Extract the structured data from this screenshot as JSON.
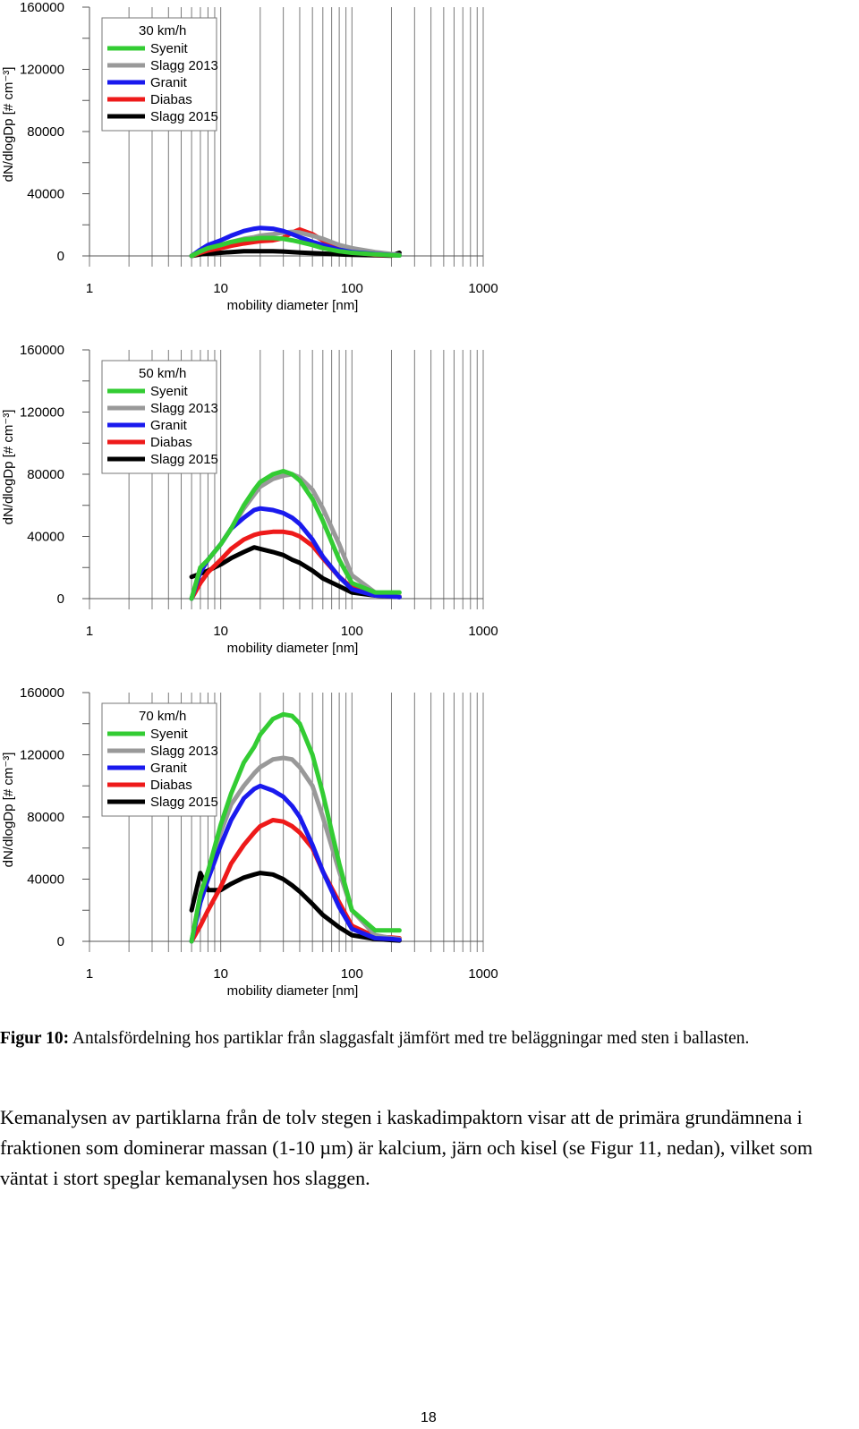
{
  "charts": [
    {
      "legend_title": "30 km/h",
      "ylabel": "dN/dlogDp [# cm⁻³]",
      "xlabel": "mobility diameter [nm]",
      "ytick_labels": [
        "0",
        "40000",
        "80000",
        "120000",
        "160000"
      ],
      "xtick_labels": [
        "1",
        "10",
        "100",
        "1000"
      ]
    },
    {
      "legend_title": "50 km/h",
      "ylabel": "dN/dlogDp [# cm⁻³]",
      "xlabel": "mobility diameter [nm]",
      "ytick_labels": [
        "0",
        "40000",
        "80000",
        "120000",
        "160000"
      ],
      "xtick_labels": [
        "1",
        "10",
        "100",
        "1000"
      ]
    },
    {
      "legend_title": "70 km/h",
      "ylabel": "dN/dlogDp [# cm⁻³]",
      "xlabel": "mobility diameter [nm]",
      "ytick_labels": [
        "0",
        "40000",
        "80000",
        "120000",
        "160000"
      ],
      "xtick_labels": [
        "1",
        "10",
        "100",
        "1000"
      ]
    }
  ],
  "chart_data": [
    {
      "type": "line",
      "title": "30 km/h",
      "xlabel": "mobility diameter [nm]",
      "ylabel": "dN/dlogDp [# cm⁻³]",
      "xscale": "log",
      "xlim": [
        1,
        1000
      ],
      "ylim": [
        0,
        160000
      ],
      "grid": true,
      "legend": "top-left",
      "x": [
        6,
        7,
        8,
        10,
        12,
        15,
        18,
        20,
        25,
        30,
        35,
        40,
        50,
        60,
        80,
        100,
        150,
        200,
        230
      ],
      "series": [
        {
          "name": "Syenit",
          "color": "#33cc33",
          "values": [
            0,
            3000,
            5000,
            7000,
            9000,
            10500,
            11000,
            11500,
            11500,
            11000,
            10000,
            9000,
            7000,
            5000,
            3000,
            2000,
            1000,
            500,
            300
          ]
        },
        {
          "name": "Slagg 2013",
          "color": "#999999",
          "values": [
            0,
            3000,
            5000,
            7000,
            9000,
            11000,
            12000,
            13000,
            14000,
            15000,
            15500,
            15000,
            13000,
            11000,
            7000,
            5000,
            2500,
            1200,
            600
          ]
        },
        {
          "name": "Granit",
          "color": "#1a1aee",
          "values": [
            0,
            4000,
            7000,
            10000,
            13000,
            16000,
            17500,
            18000,
            17500,
            16000,
            14000,
            12000,
            9000,
            7000,
            4000,
            2500,
            1200,
            600,
            300
          ]
        },
        {
          "name": "Diabas",
          "color": "#ee1a1a",
          "values": [
            0,
            2000,
            3500,
            5000,
            6500,
            8000,
            9000,
            9500,
            10000,
            11500,
            15000,
            17000,
            14000,
            10000,
            5000,
            2500,
            800,
            400,
            300
          ]
        },
        {
          "name": "Slagg 2015",
          "color": "#000000",
          "values": [
            0,
            1000,
            1500,
            2000,
            2500,
            3000,
            3000,
            3000,
            3000,
            2800,
            2500,
            2200,
            1800,
            1500,
            1000,
            700,
            400,
            200,
            2000
          ]
        }
      ]
    },
    {
      "type": "line",
      "title": "50 km/h",
      "xlabel": "mobility diameter [nm]",
      "ylabel": "dN/dlogDp [# cm⁻³]",
      "xscale": "log",
      "xlim": [
        1,
        1000
      ],
      "ylim": [
        0,
        160000
      ],
      "grid": true,
      "legend": "top-left",
      "x": [
        6,
        7,
        8,
        10,
        12,
        15,
        18,
        20,
        25,
        30,
        35,
        40,
        50,
        60,
        80,
        100,
        150,
        200,
        230
      ],
      "series": [
        {
          "name": "Syenit",
          "color": "#33cc33",
          "values": [
            0,
            20000,
            25000,
            35000,
            45000,
            60000,
            70000,
            75000,
            80000,
            82000,
            80000,
            76000,
            64000,
            50000,
            25000,
            10000,
            4000,
            4000,
            4000
          ]
        },
        {
          "name": "Slagg 2013",
          "color": "#999999",
          "values": [
            0,
            20000,
            25000,
            35000,
            45000,
            58000,
            67000,
            72000,
            77000,
            79000,
            80000,
            78000,
            70000,
            58000,
            35000,
            15000,
            4000,
            2000,
            1500
          ]
        },
        {
          "name": "Granit",
          "color": "#1a1aee",
          "values": [
            0,
            17000,
            25000,
            35000,
            45000,
            52000,
            57000,
            58000,
            57000,
            55000,
            52000,
            48000,
            38000,
            27000,
            14000,
            6000,
            2000,
            1500,
            1000
          ]
        },
        {
          "name": "Diabas",
          "color": "#ee1a1a",
          "values": [
            0,
            10000,
            17000,
            25000,
            32000,
            38000,
            41000,
            42000,
            43000,
            43000,
            42000,
            40000,
            34000,
            26000,
            14000,
            7000,
            3000,
            2000,
            1500
          ]
        },
        {
          "name": "Slagg 2015",
          "color": "#000000",
          "values": [
            14000,
            16000,
            18000,
            22000,
            26000,
            30000,
            33000,
            32000,
            30000,
            28000,
            25000,
            23000,
            18000,
            13000,
            8000,
            4000,
            2000,
            1500,
            1000
          ]
        }
      ]
    },
    {
      "type": "line",
      "title": "70 km/h",
      "xlabel": "mobility diameter [nm]",
      "ylabel": "dN/dlogDp [# cm⁻³]",
      "xscale": "log",
      "xlim": [
        1,
        1000
      ],
      "ylim": [
        0,
        160000
      ],
      "grid": true,
      "legend": "top-left",
      "x": [
        6,
        7,
        8,
        10,
        12,
        15,
        18,
        20,
        25,
        30,
        35,
        40,
        50,
        60,
        80,
        100,
        150,
        200,
        230
      ],
      "series": [
        {
          "name": "Syenit",
          "color": "#33cc33",
          "values": [
            0,
            30000,
            45000,
            75000,
            95000,
            115000,
            125000,
            133000,
            143000,
            146000,
            145000,
            140000,
            120000,
            95000,
            50000,
            20000,
            7000,
            7000,
            7000
          ]
        },
        {
          "name": "Slagg 2013",
          "color": "#999999",
          "values": [
            0,
            30000,
            45000,
            70000,
            88000,
            100000,
            108000,
            112000,
            117000,
            118000,
            117000,
            112000,
            100000,
            80000,
            45000,
            20000,
            4000,
            2000,
            1500
          ]
        },
        {
          "name": "Granit",
          "color": "#1a1aee",
          "values": [
            0,
            25000,
            40000,
            62000,
            78000,
            92000,
            98000,
            100000,
            97000,
            93000,
            87000,
            80000,
            62000,
            45000,
            22000,
            8000,
            2000,
            1500,
            1000
          ]
        },
        {
          "name": "Diabas",
          "color": "#ee1a1a",
          "values": [
            0,
            10000,
            20000,
            35000,
            50000,
            62000,
            70000,
            74000,
            78000,
            77000,
            74000,
            70000,
            60000,
            45000,
            25000,
            10000,
            3000,
            2500,
            2000
          ]
        },
        {
          "name": "Slagg 2015",
          "color": "#000000",
          "values": [
            20000,
            44000,
            33000,
            33000,
            37000,
            41000,
            43000,
            44000,
            43000,
            40000,
            36000,
            32000,
            24000,
            17000,
            9000,
            4000,
            1500,
            800,
            500
          ]
        }
      ]
    }
  ],
  "caption": {
    "label": "Figur 10:",
    "text": " Antalsfördelning hos partiklar från slaggasfalt jämfört med tre beläggningar med sten i ballasten."
  },
  "paragraph": "Kemanalysen av partiklarna från de tolv stegen i kaskadimpaktorn visar att de primära grundämnena i fraktionen som dominerar massan (1-10 µm) är kalcium, järn och kisel (se Figur 11, nedan), vilket som väntat i stort speglar kemanalysen hos slaggen.",
  "page_number": "18"
}
